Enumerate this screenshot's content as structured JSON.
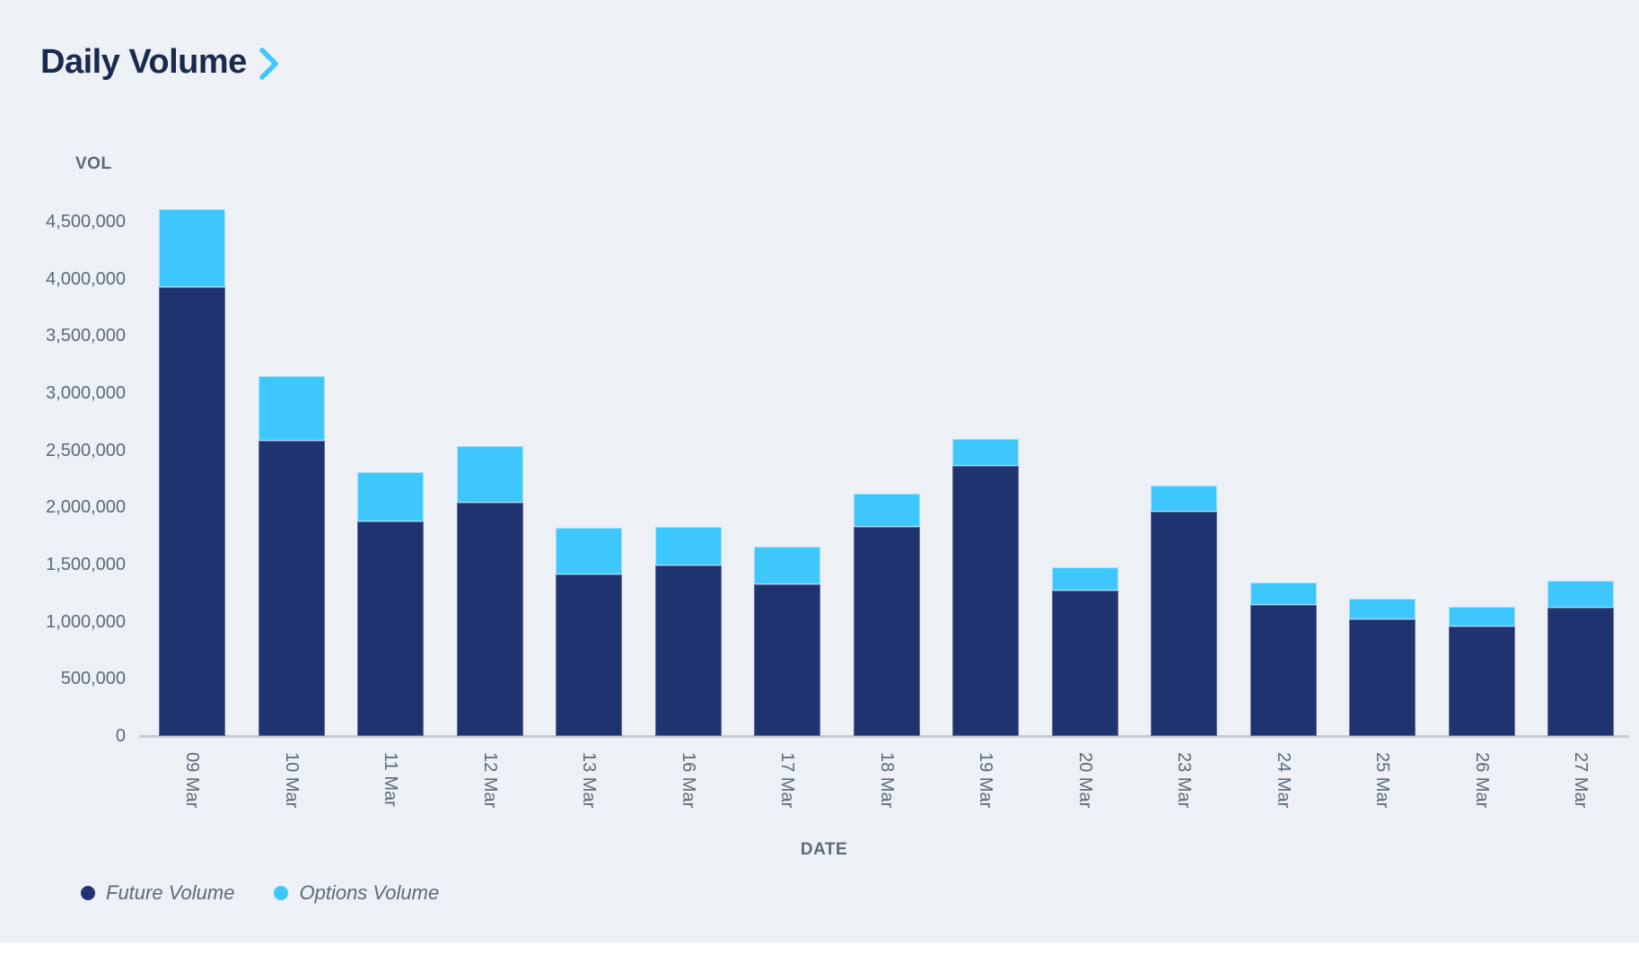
{
  "title": {
    "text": "Daily Volume"
  },
  "colors": {
    "background": "#EDF1F6",
    "title_text": "#182A4E",
    "accent_chevron": "#41C7FC",
    "muted_text": "#5A6A7A",
    "axis_line": "#C6CBD1",
    "future": "#203371",
    "options": "#3EC7FC"
  },
  "icons": {
    "title_chevron": "chevron-right-icon"
  },
  "chart_data": {
    "type": "bar",
    "stacked": true,
    "title": "Daily Volume",
    "xlabel": "DATE",
    "ylabel": "VOL",
    "ylim": [
      0,
      4500000
    ],
    "ytick_step": 500000,
    "ytick_labels": [
      "0",
      "500,000",
      "1,000,000",
      "1,500,000",
      "2,000,000",
      "2,500,000",
      "3,000,000",
      "3,500,000",
      "4,000,000",
      "4,500,000"
    ],
    "grid": false,
    "legend_position": "bottom-left",
    "categories": [
      "09 Mar",
      "10 Mar",
      "11 Mar",
      "12 Mar",
      "13 Mar",
      "16 Mar",
      "17 Mar",
      "18 Mar",
      "19 Mar",
      "20 Mar",
      "23 Mar",
      "24 Mar",
      "25 Mar",
      "26 Mar",
      "27 Mar"
    ],
    "series": [
      {
        "name": "Future Volume",
        "color": "#203371",
        "values": [
          3930000,
          2580000,
          1880000,
          2040000,
          1410000,
          1490000,
          1330000,
          1830000,
          2360000,
          1270000,
          1960000,
          1150000,
          1020000,
          960000,
          1120000
        ]
      },
      {
        "name": "Options Volume",
        "color": "#3EC7FC",
        "values": [
          680000,
          570000,
          430000,
          500000,
          410000,
          340000,
          330000,
          290000,
          240000,
          210000,
          230000,
          190000,
          180000,
          170000,
          240000
        ]
      }
    ]
  }
}
